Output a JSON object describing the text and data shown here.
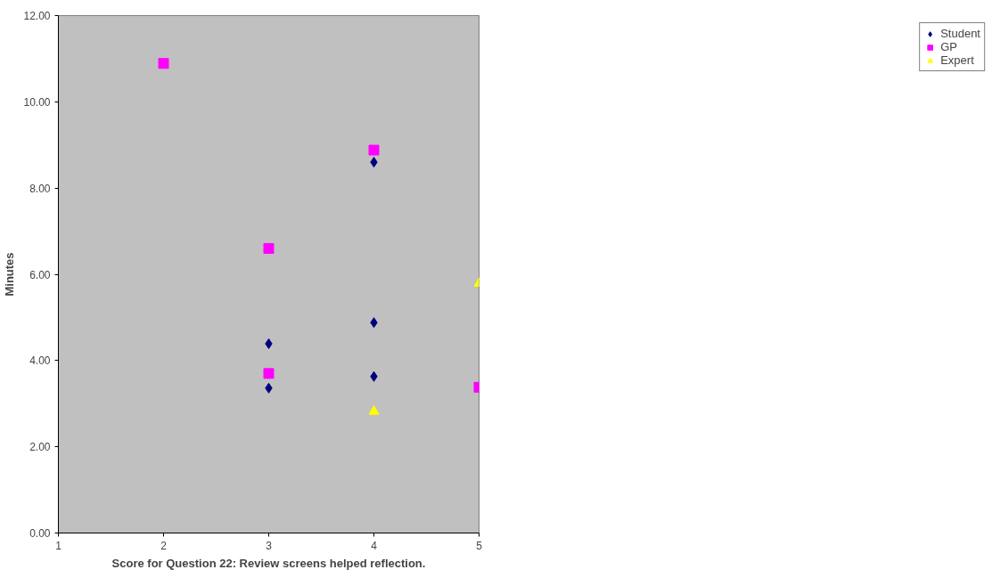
{
  "chart_data": {
    "type": "scatter",
    "xlabel": "Score for Question 22: Review screens helped reflection.",
    "ylabel": "Minutes",
    "xlim": [
      1,
      5
    ],
    "xticks": [
      1,
      2,
      3,
      4,
      5
    ],
    "ylim": [
      0,
      12
    ],
    "yticks": [
      {
        "value": 0,
        "label": "0.00"
      },
      {
        "value": 2,
        "label": "2.00"
      },
      {
        "value": 4,
        "label": "4.00"
      },
      {
        "value": 6,
        "label": "6.00"
      },
      {
        "value": 8,
        "label": "8.00"
      },
      {
        "value": 10,
        "label": "10.00"
      },
      {
        "value": 12,
        "label": "12.00"
      }
    ],
    "grid": false,
    "legend": "right",
    "series": [
      {
        "name": "Student",
        "color": "#000080",
        "marker": "diamond",
        "x": [
          3,
          3,
          4,
          4,
          4
        ],
        "values": [
          3.36,
          4.39,
          8.6,
          4.88,
          3.63
        ]
      },
      {
        "name": "GP",
        "color": "#ff00ff",
        "marker": "square",
        "x": [
          2,
          3,
          3,
          4,
          5
        ],
        "values": [
          10.89,
          6.6,
          3.7,
          8.88,
          3.38
        ]
      },
      {
        "name": "Expert",
        "color": "#ffff00",
        "marker": "triangle",
        "x": [
          4,
          5
        ],
        "values": [
          2.82,
          5.79
        ]
      }
    ]
  }
}
